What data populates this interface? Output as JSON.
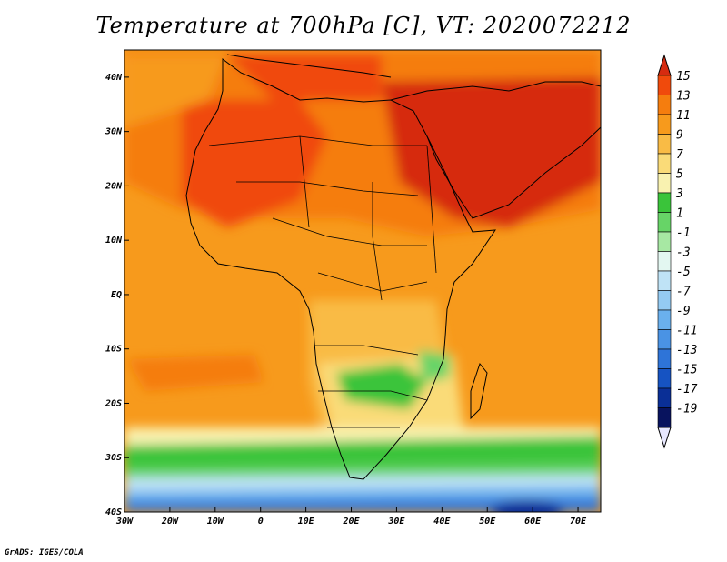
{
  "title": "Temperature at 700hPa [C], VT: 2020072212",
  "credit": "GrADS: IGES/COLA",
  "map": {
    "lon_range": [
      -30,
      75
    ],
    "lat_range": [
      -40,
      45
    ],
    "x_ticks": [
      {
        "value": -30,
        "label": "30W"
      },
      {
        "value": -20,
        "label": "20W"
      },
      {
        "value": -10,
        "label": "10W"
      },
      {
        "value": 0,
        "label": "0"
      },
      {
        "value": 10,
        "label": "10E"
      },
      {
        "value": 20,
        "label": "20E"
      },
      {
        "value": 30,
        "label": "30E"
      },
      {
        "value": 40,
        "label": "40E"
      },
      {
        "value": 50,
        "label": "50E"
      },
      {
        "value": 60,
        "label": "60E"
      },
      {
        "value": 70,
        "label": "70E"
      }
    ],
    "y_ticks": [
      {
        "value": 40,
        "label": "40N"
      },
      {
        "value": 30,
        "label": "30N"
      },
      {
        "value": 20,
        "label": "20N"
      },
      {
        "value": 10,
        "label": "10N"
      },
      {
        "value": 0,
        "label": "EQ"
      },
      {
        "value": -10,
        "label": "10S"
      },
      {
        "value": -20,
        "label": "20S"
      },
      {
        "value": -30,
        "label": "30S"
      },
      {
        "value": -40,
        "label": "40S"
      }
    ]
  },
  "colorbar": {
    "labels": [
      "15",
      "13",
      "11",
      "9",
      "7",
      "5",
      "3",
      "1",
      "-1",
      "-3",
      "-5",
      "-7",
      "-9",
      "-11",
      "-13",
      "-15",
      "-17",
      "-19"
    ],
    "colors": [
      "#d62b10",
      "#f04a0c",
      "#f57d0e",
      "#f79a1c",
      "#f9bb45",
      "#fadb78",
      "#f9f2b0",
      "#3ac43a",
      "#67d467",
      "#a7e8a3",
      "#e3f7f1",
      "#bfe3f6",
      "#94cbf2",
      "#6ab0ed",
      "#4a93e4",
      "#2e74d8",
      "#1653c2",
      "#0a2f96",
      "#08135e",
      "#e8e8ff"
    ]
  }
}
